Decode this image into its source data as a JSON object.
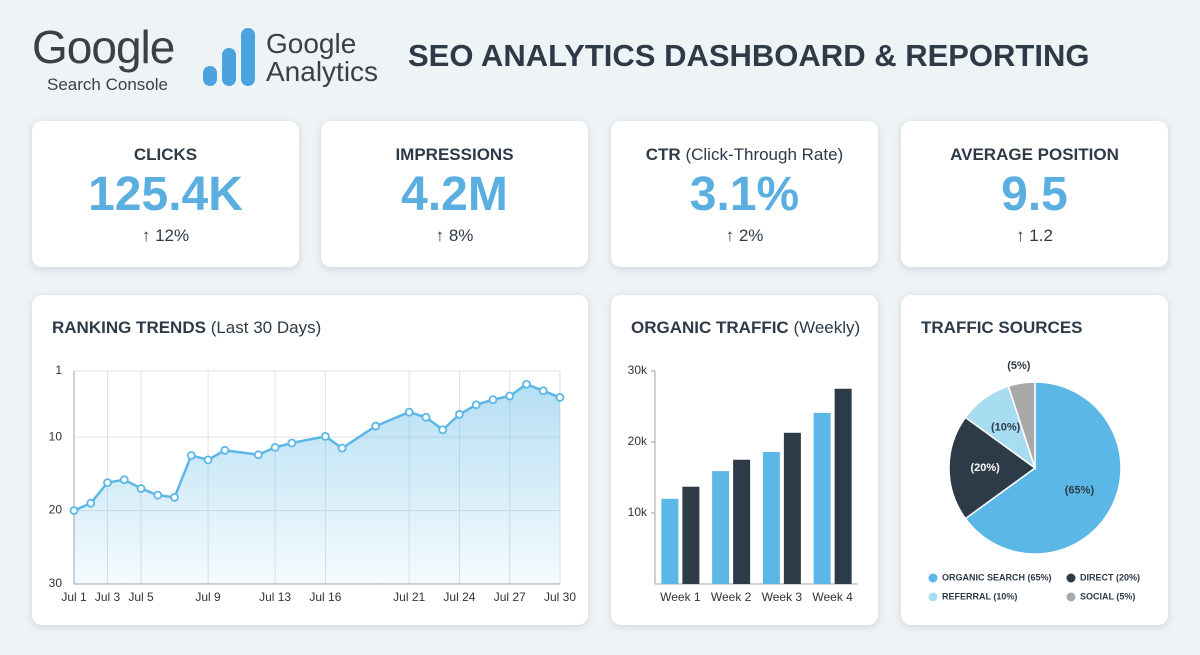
{
  "header": {
    "logo1": "Google",
    "logo1_sub": "Search Console",
    "logo2_line1": "Google",
    "logo2_line2": "Analytics",
    "title": "SEO ANALYTICS DASHBOARD & REPORTING"
  },
  "kpis": [
    {
      "label": "CLICKS",
      "value": "125.4K",
      "change": "↑ 12%"
    },
    {
      "label": "IMPRESSIONS",
      "value": "4.2M",
      "change": "↑ 8%"
    },
    {
      "label": "CTR",
      "label_note": "(Click-Through Rate)",
      "value": "3.1%",
      "change": "↑ 2%"
    },
    {
      "label": "AVERAGE POSITION",
      "value": "9.5",
      "change": "↑ 1.2"
    }
  ],
  "chart_data": [
    {
      "type": "line",
      "title": "RANKING TRENDS",
      "subtitle": "(Last 30 Days)",
      "x": [
        1,
        2,
        3,
        4,
        5,
        6,
        7,
        8,
        9,
        10,
        12,
        13,
        14,
        16,
        17,
        19,
        21,
        22,
        23,
        24,
        25,
        26,
        27,
        28,
        29,
        30
      ],
      "values": [
        20,
        19,
        16.2,
        15.8,
        17,
        17.9,
        18.2,
        12.5,
        13.1,
        11.8,
        12.4,
        11.4,
        10.8,
        9.9,
        11.5,
        8.5,
        6.6,
        7.3,
        9,
        6.9,
        5.6,
        4.9,
        4.4,
        2.8,
        3.7,
        4.6
      ],
      "color": "#5bb8e6",
      "xlim": [
        1,
        30
      ],
      "xticks": [
        {
          "value": 1,
          "label": "Jul 1"
        },
        {
          "value": 3,
          "label": "Jul 3"
        },
        {
          "value": 5,
          "label": "Jul 5"
        },
        {
          "value": 9,
          "label": "Jul 9"
        },
        {
          "value": 13,
          "label": "Jul 13"
        },
        {
          "value": 16,
          "label": "Jul 16"
        },
        {
          "value": 21,
          "label": "Jul 21"
        },
        {
          "value": 24,
          "label": "Jul 24"
        },
        {
          "value": 27,
          "label": "Jul 27"
        },
        {
          "value": 30,
          "label": "Jul 30"
        }
      ],
      "ylim": [
        30,
        1
      ],
      "yticks": [
        1,
        10,
        20,
        30
      ],
      "grid": true
    },
    {
      "type": "bar",
      "title": "ORGANIC TRAFFIC",
      "subtitle": "(Weekly)",
      "categories": [
        "Week 1",
        "Week 2",
        "Week 3",
        "Week 4"
      ],
      "series": [
        {
          "color": "#5bb8e6",
          "values": [
            12000,
            15900,
            18600,
            24100
          ]
        },
        {
          "color": "#2d3a48",
          "values": [
            13700,
            17500,
            21300,
            27500
          ]
        }
      ],
      "ylim": [
        0,
        30000
      ],
      "yticks": [
        {
          "value": 10000,
          "label": "10k"
        },
        {
          "value": 20000,
          "label": "20k"
        },
        {
          "value": 30000,
          "label": "30k"
        }
      ]
    },
    {
      "type": "pie",
      "title": "TRAFFIC SOURCES",
      "categories": [
        "ORGANIC SEARCH (65%)",
        "DIRECT (20%)",
        "REFERRAL (10%)",
        "SOCIAL (5%)"
      ],
      "values": [
        65,
        20,
        10,
        5
      ],
      "value_labels": [
        "(65%)",
        "(20%)",
        "(10%)",
        "(5%)"
      ],
      "colors": [
        "#5bb8e6",
        "#2d3a48",
        "#a8dcf0",
        "#a9a9a9"
      ]
    }
  ]
}
